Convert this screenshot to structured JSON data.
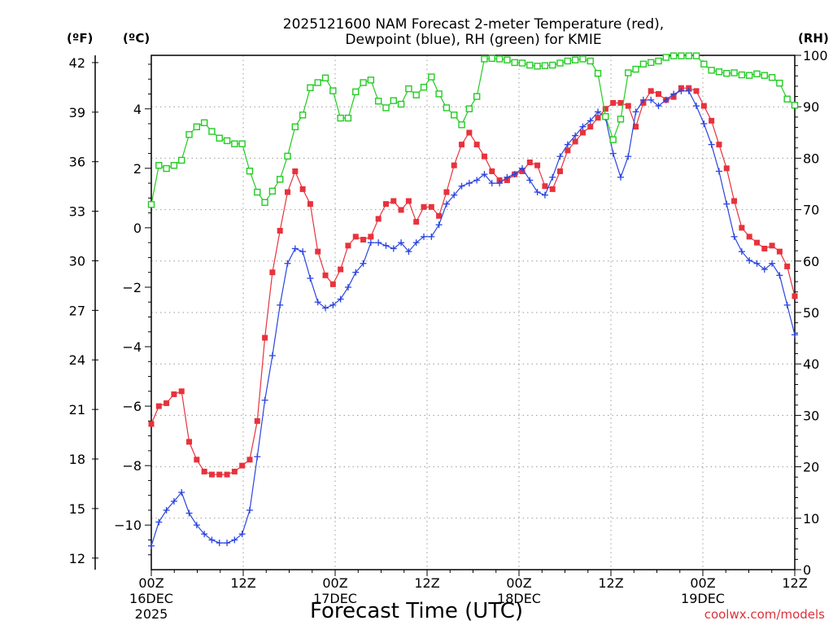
{
  "chart_data": {
    "type": "line",
    "title_line1": "2025121600 NAM Forecast 2-meter Temperature (red),",
    "title_line2": "Dewpoint (blue), RH (green) for KMIE",
    "units": {
      "fahrenheit": "(ºF)",
      "celsius": "(ºC)",
      "rh": "(RH)"
    },
    "xlabel": "Forecast Time (UTC)",
    "credit": "coolwx.com/models",
    "x_range_hours": [
      0,
      84
    ],
    "y_celsius_range": [
      -11.5,
      5.8
    ],
    "y_rh_range": [
      0,
      100
    ],
    "fahrenheit_ticks": [
      "12",
      "15",
      "18",
      "21",
      "24",
      "27",
      "30",
      "33",
      "36",
      "39",
      "42"
    ],
    "celsius_ticks": [
      "−10",
      "−8",
      "−6",
      "−4",
      "−2",
      "0",
      "2",
      "4"
    ],
    "rh_ticks": [
      "0",
      "10",
      "20",
      "30",
      "40",
      "50",
      "60",
      "70",
      "80",
      "90",
      "100"
    ],
    "x_ticks": [
      {
        "hour": 0,
        "label": "00Z",
        "sub1": "16DEC",
        "sub2": "2025"
      },
      {
        "hour": 12,
        "label": "12Z"
      },
      {
        "hour": 24,
        "label": "00Z",
        "sub1": "17DEC"
      },
      {
        "hour": 36,
        "label": "12Z"
      },
      {
        "hour": 48,
        "label": "00Z",
        "sub1": "18DEC"
      },
      {
        "hour": 60,
        "label": "12Z"
      },
      {
        "hour": 72,
        "label": "00Z",
        "sub1": "19DEC"
      },
      {
        "hour": 84,
        "label": "12Z"
      }
    ],
    "grid": true,
    "series": [
      {
        "name": "Temperature",
        "units": "C",
        "color": "#e8323c",
        "values": [
          -6.6,
          -6.0,
          -5.9,
          -5.6,
          -5.5,
          -7.2,
          -7.8,
          -8.2,
          -8.3,
          -8.3,
          -8.3,
          -8.2,
          -8.0,
          -7.8,
          -6.5,
          -3.7,
          -1.5,
          -0.1,
          1.2,
          1.9,
          1.3,
          0.8,
          -0.8,
          -1.6,
          -1.9,
          -1.4,
          -0.6,
          -0.3,
          -0.4,
          -0.3,
          0.3,
          0.8,
          0.9,
          0.6,
          0.9,
          0.2,
          0.7,
          0.7,
          0.4,
          1.2,
          2.1,
          2.8,
          3.2,
          2.8,
          2.4,
          1.9,
          1.6,
          1.6,
          1.8,
          1.9,
          2.2,
          2.1,
          1.4,
          1.3,
          1.9,
          2.6,
          2.9,
          3.2,
          3.4,
          3.7,
          4.0,
          4.2,
          4.2,
          4.1,
          3.4,
          4.2,
          4.6,
          4.5,
          4.3,
          4.4,
          4.7,
          4.7,
          4.6,
          4.1,
          3.6,
          2.8,
          2.0,
          0.9,
          0.0,
          -0.3,
          -0.5,
          -0.7,
          -0.6,
          -0.8,
          -1.3,
          -2.3
        ]
      },
      {
        "name": "Dewpoint",
        "units": "C",
        "color": "#2a44e0",
        "values": [
          -10.7,
          -9.9,
          -9.5,
          -9.2,
          -8.9,
          -9.6,
          -10.0,
          -10.3,
          -10.5,
          -10.6,
          -10.6,
          -10.5,
          -10.3,
          -9.5,
          -7.7,
          -5.8,
          -4.3,
          -2.6,
          -1.2,
          -0.7,
          -0.8,
          -1.7,
          -2.5,
          -2.7,
          -2.6,
          -2.4,
          -2.0,
          -1.5,
          -1.2,
          -0.5,
          -0.5,
          -0.6,
          -0.7,
          -0.5,
          -0.8,
          -0.5,
          -0.3,
          -0.3,
          0.1,
          0.8,
          1.1,
          1.4,
          1.5,
          1.6,
          1.8,
          1.5,
          1.5,
          1.7,
          1.8,
          2.0,
          1.6,
          1.2,
          1.1,
          1.7,
          2.4,
          2.8,
          3.1,
          3.4,
          3.6,
          3.9,
          3.7,
          2.5,
          1.7,
          2.4,
          3.9,
          4.3,
          4.3,
          4.1,
          4.3,
          4.5,
          4.6,
          4.6,
          4.1,
          3.5,
          2.8,
          1.9,
          0.8,
          -0.3,
          -0.8,
          -1.1,
          -1.2,
          -1.4,
          -1.2,
          -1.6,
          -2.6,
          -3.6
        ]
      },
      {
        "name": "RH",
        "units": "%",
        "color": "#22cc22",
        "values": [
          71,
          78.6,
          78,
          78.6,
          79.6,
          84.6,
          86.1,
          86.9,
          85.2,
          83.9,
          83.4,
          82.8,
          82.8,
          77.5,
          73.4,
          71.4,
          73.6,
          75.9,
          80.4,
          86.1,
          88.4,
          93.7,
          94.7,
          95.6,
          93.1,
          87.8,
          87.8,
          92.9,
          94.7,
          95.2,
          91.1,
          89.8,
          91.2,
          90.5,
          93.5,
          92.3,
          93.8,
          95.8,
          92.5,
          89.8,
          88.4,
          86.5,
          89.6,
          92,
          99.3,
          99.4,
          99.3,
          99.1,
          98.6,
          98.5,
          98.1,
          97.9,
          98,
          98.1,
          98.5,
          98.9,
          99.1,
          99.3,
          98.9,
          96.5,
          88.1,
          83.6,
          87.6,
          96.6,
          97.3,
          98.3,
          98.6,
          98.9,
          99.6,
          99.9,
          99.9,
          99.9,
          99.9,
          98.3,
          97.1,
          96.8,
          96.5,
          96.6,
          96.2,
          96.1,
          96.4,
          96.1,
          95.7,
          94.6,
          91.5,
          90.3
        ]
      }
    ]
  }
}
